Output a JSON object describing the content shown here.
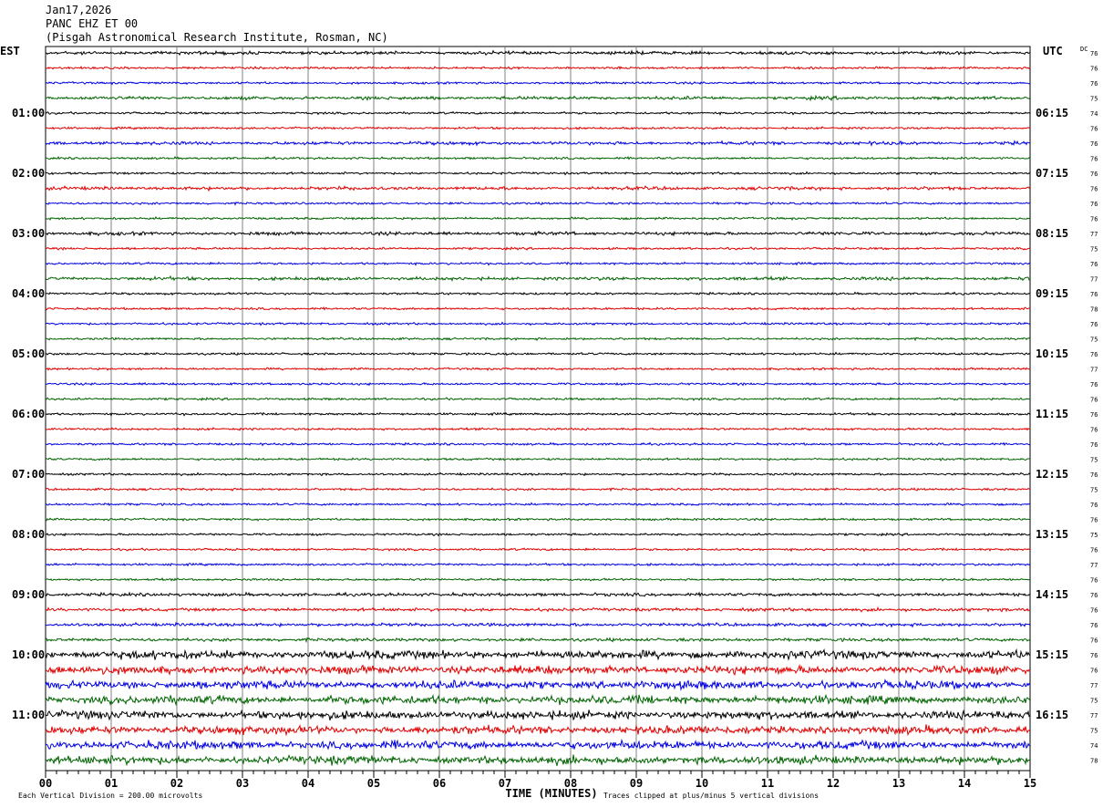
{
  "header": {
    "date": "Jan17,2026",
    "station": "PANC EHZ ET 00",
    "location": "(Pisgah Astronomical Research Institute, Rosman, NC)"
  },
  "chart_data": {
    "type": "line",
    "title": "",
    "xlabel": "TIME (MINUTES)",
    "ylabel": "",
    "left_axis_label": "EST",
    "right_axis_label": "UTC",
    "dc_label": "DC",
    "xlim": [
      0,
      15
    ],
    "x_ticks": [
      "00",
      "01",
      "02",
      "03",
      "04",
      "05",
      "06",
      "07",
      "08",
      "09",
      "10",
      "11",
      "12",
      "13",
      "14",
      "15"
    ],
    "trace_colors": [
      "#000000",
      "#e00000",
      "#0000e0",
      "#006400"
    ],
    "trace_count": 48,
    "est_labels": [
      "01:00",
      "02:00",
      "03:00",
      "04:00",
      "05:00",
      "06:00",
      "07:00",
      "08:00",
      "09:00",
      "10:00",
      "11:00"
    ],
    "utc_labels": [
      "06:15",
      "07:15",
      "08:15",
      "09:15",
      "10:15",
      "11:15",
      "12:15",
      "13:15",
      "14:15",
      "15:15",
      "16:15"
    ],
    "dc_values": [
      "76",
      "76",
      "76",
      "75",
      "74",
      "76",
      "76",
      "76",
      "76",
      "76",
      "76",
      "76",
      "77",
      "75",
      "76",
      "77",
      "76",
      "78",
      "76",
      "75",
      "76",
      "77",
      "76",
      "76",
      "76",
      "76",
      "76",
      "75",
      "76",
      "75",
      "76",
      "76",
      "75",
      "76",
      "77",
      "76",
      "76",
      "76",
      "76",
      "76",
      "76",
      "76",
      "77",
      "75",
      "77",
      "75",
      "74",
      "78"
    ],
    "footer_left": "Each Vertical Division =  200.00 microvolts",
    "footer_right": "Traces clipped at plus/minus 5 vertical divisions"
  }
}
